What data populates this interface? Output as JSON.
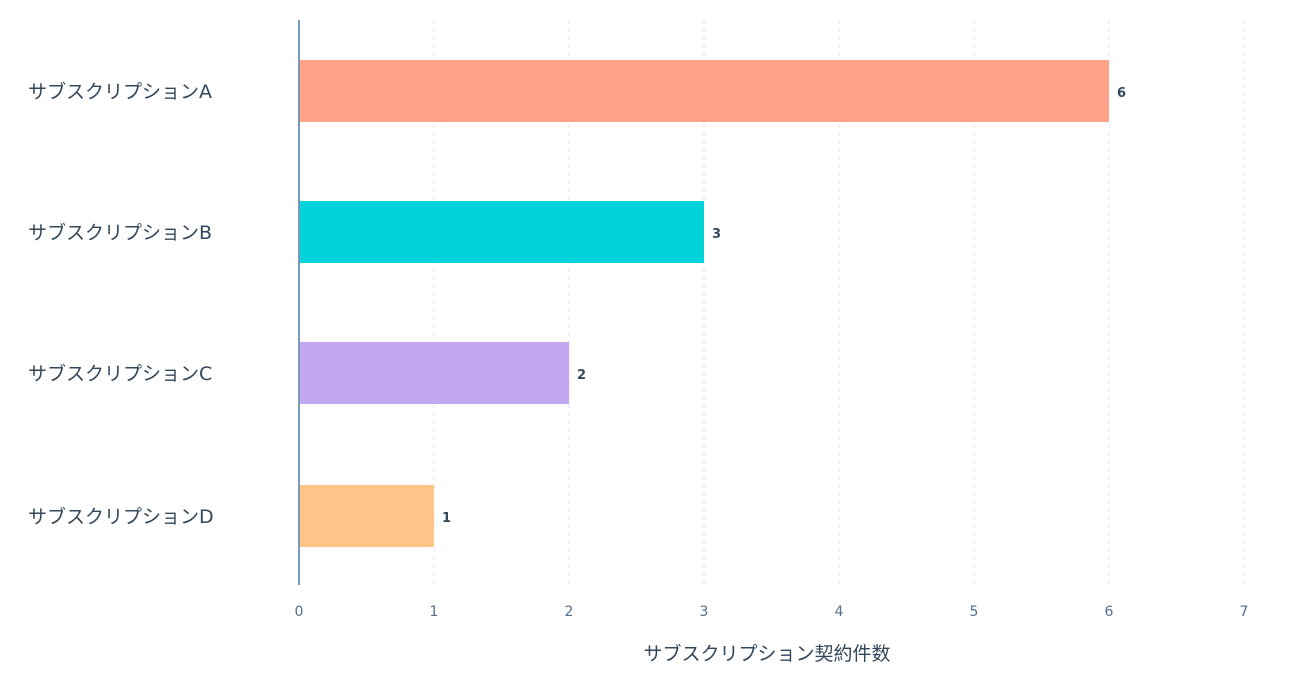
{
  "chart_data": {
    "type": "bar",
    "orientation": "horizontal",
    "categories": [
      "サブスクリプションA",
      "サブスクリプションB",
      "サブスクリプションC",
      "サブスクリプションD"
    ],
    "values": [
      6,
      3,
      2,
      1
    ],
    "colors": [
      "#ffa287",
      "#00d4db",
      "#c2a8ef",
      "#ffc487"
    ],
    "xlabel": "サブスクリプション契約件数",
    "ylabel": "",
    "xlim": [
      0,
      7
    ],
    "x_ticks": [
      "0",
      "1",
      "2",
      "3",
      "4",
      "5",
      "6",
      "7"
    ],
    "data_labels": [
      "6",
      "3",
      "2",
      "1"
    ],
    "grid": "vertical dashed",
    "axis_color": "#7c98b6",
    "grid_color": "#dfe3eb"
  }
}
